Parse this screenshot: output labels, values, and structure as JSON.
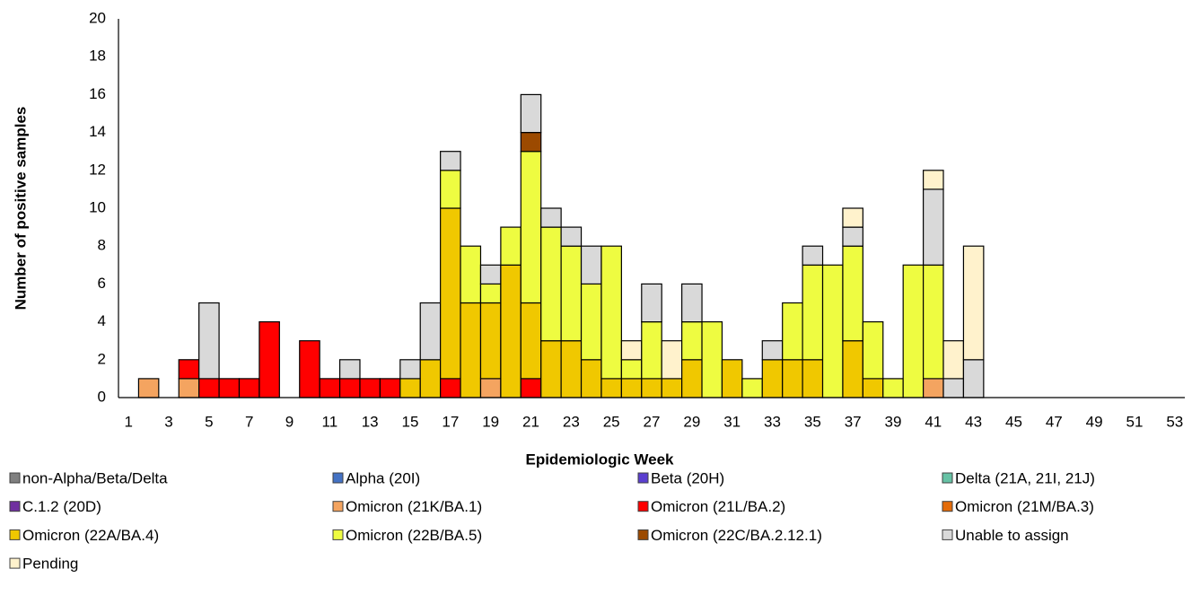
{
  "chart_data": {
    "type": "stacked_bar",
    "xlabel": "Epidemiologic Week",
    "ylabel": "Number of positive samples",
    "categories": [
      "1",
      null,
      "3",
      null,
      "5",
      null,
      "7",
      null,
      "9",
      null,
      "11",
      null,
      "13",
      null,
      "15",
      null,
      "17",
      null,
      "19",
      null,
      "21",
      null,
      "23",
      null,
      "25",
      null,
      "27",
      null,
      "29",
      null,
      "31",
      null,
      "33",
      null,
      "35",
      null,
      "37",
      null,
      "39",
      null,
      "41",
      null,
      "43",
      null,
      "45",
      null,
      "47",
      null,
      "49",
      null,
      "51",
      null,
      "53"
    ],
    "ylim": [
      0,
      20
    ],
    "yticks": [
      0,
      2,
      4,
      6,
      8,
      10,
      12,
      14,
      16,
      18,
      20
    ],
    "grid": false,
    "series": [
      {
        "name": "non-Alpha/Beta/Delta",
        "color": "#808080",
        "values": [
          0,
          0,
          0,
          0,
          0,
          0,
          0,
          0,
          0,
          0,
          0,
          0,
          0,
          0,
          0,
          0,
          0,
          0,
          0,
          0,
          0,
          0,
          0,
          0,
          0,
          0,
          0,
          0,
          0,
          0,
          0,
          0,
          0,
          0,
          0,
          0,
          0,
          0,
          0,
          0,
          0,
          0,
          0,
          0,
          0,
          0,
          0,
          0,
          0,
          0,
          0,
          0,
          0
        ]
      },
      {
        "name": "Alpha (20I)",
        "color": "#4472c4",
        "values": [
          0,
          0,
          0,
          0,
          0,
          0,
          0,
          0,
          0,
          0,
          0,
          0,
          0,
          0,
          0,
          0,
          0,
          0,
          0,
          0,
          0,
          0,
          0,
          0,
          0,
          0,
          0,
          0,
          0,
          0,
          0,
          0,
          0,
          0,
          0,
          0,
          0,
          0,
          0,
          0,
          0,
          0,
          0,
          0,
          0,
          0,
          0,
          0,
          0,
          0,
          0,
          0,
          0
        ]
      },
      {
        "name": "Beta (20H)",
        "color": "#5b3fd0",
        "values": [
          0,
          0,
          0,
          0,
          0,
          0,
          0,
          0,
          0,
          0,
          0,
          0,
          0,
          0,
          0,
          0,
          0,
          0,
          0,
          0,
          0,
          0,
          0,
          0,
          0,
          0,
          0,
          0,
          0,
          0,
          0,
          0,
          0,
          0,
          0,
          0,
          0,
          0,
          0,
          0,
          0,
          0,
          0,
          0,
          0,
          0,
          0,
          0,
          0,
          0,
          0,
          0,
          0
        ]
      },
      {
        "name": "Delta (21A, 21I, 21J)",
        "color": "#66c2a5",
        "values": [
          0,
          0,
          0,
          0,
          0,
          0,
          0,
          0,
          0,
          0,
          0,
          0,
          0,
          0,
          0,
          0,
          0,
          0,
          0,
          0,
          0,
          0,
          0,
          0,
          0,
          0,
          0,
          0,
          0,
          0,
          0,
          0,
          0,
          0,
          0,
          0,
          0,
          0,
          0,
          0,
          0,
          0,
          0,
          0,
          0,
          0,
          0,
          0,
          0,
          0,
          0,
          0,
          0
        ]
      },
      {
        "name": "C.1.2 (20D)",
        "color": "#7030a0",
        "values": [
          0,
          0,
          0,
          0,
          0,
          0,
          0,
          0,
          0,
          0,
          0,
          0,
          0,
          0,
          0,
          0,
          0,
          0,
          0,
          0,
          0,
          0,
          0,
          0,
          0,
          0,
          0,
          0,
          0,
          0,
          0,
          0,
          0,
          0,
          0,
          0,
          0,
          0,
          0,
          0,
          0,
          0,
          0,
          0,
          0,
          0,
          0,
          0,
          0,
          0,
          0,
          0,
          0
        ]
      },
      {
        "name": "Omicron (21K/BA.1)",
        "color": "#f4a460",
        "values": [
          0,
          1,
          0,
          1,
          0,
          0,
          0,
          0,
          0,
          0,
          0,
          0,
          0,
          0,
          0,
          0,
          0,
          0,
          1,
          0,
          0,
          0,
          0,
          0,
          0,
          0,
          0,
          0,
          0,
          0,
          0,
          0,
          0,
          0,
          0,
          0,
          0,
          0,
          0,
          0,
          1,
          0,
          0,
          0,
          0,
          0,
          0,
          0,
          0,
          0,
          0,
          0,
          0
        ]
      },
      {
        "name": "Omicron (21L/BA.2)",
        "color": "#ff0000",
        "values": [
          0,
          0,
          0,
          1,
          1,
          1,
          1,
          4,
          0,
          3,
          1,
          1,
          1,
          1,
          0,
          0,
          1,
          0,
          0,
          0,
          1,
          0,
          0,
          0,
          0,
          0,
          0,
          0,
          0,
          0,
          0,
          0,
          0,
          0,
          0,
          0,
          0,
          0,
          0,
          0,
          0,
          0,
          0,
          0,
          0,
          0,
          0,
          0,
          0,
          0,
          0,
          0,
          0
        ]
      },
      {
        "name": "Omicron (21M/BA.3)",
        "color": "#e46c0a",
        "values": [
          0,
          0,
          0,
          0,
          0,
          0,
          0,
          0,
          0,
          0,
          0,
          0,
          0,
          0,
          0,
          0,
          0,
          0,
          0,
          0,
          0,
          0,
          0,
          0,
          0,
          0,
          0,
          0,
          0,
          0,
          0,
          0,
          0,
          0,
          0,
          0,
          0,
          0,
          0,
          0,
          0,
          0,
          0,
          0,
          0,
          0,
          0,
          0,
          0,
          0,
          0,
          0,
          0
        ]
      },
      {
        "name": "Omicron (22A/BA.4)",
        "color": "#f0c800",
        "values": [
          0,
          0,
          0,
          0,
          0,
          0,
          0,
          0,
          0,
          0,
          0,
          0,
          0,
          0,
          1,
          2,
          9,
          5,
          4,
          7,
          4,
          3,
          3,
          2,
          1,
          1,
          1,
          1,
          2,
          0,
          2,
          0,
          2,
          2,
          2,
          0,
          3,
          1,
          0,
          0,
          0,
          0,
          0,
          0,
          0,
          0,
          0,
          0,
          0,
          0,
          0,
          0,
          0
        ]
      },
      {
        "name": "Omicron (22B/BA.5)",
        "color": "#eefc41",
        "values": [
          0,
          0,
          0,
          0,
          0,
          0,
          0,
          0,
          0,
          0,
          0,
          0,
          0,
          0,
          0,
          0,
          2,
          3,
          1,
          2,
          8,
          6,
          5,
          4,
          7,
          1,
          3,
          0,
          2,
          4,
          0,
          1,
          0,
          3,
          5,
          7,
          5,
          3,
          1,
          7,
          6,
          0,
          0,
          0,
          0,
          0,
          0,
          0,
          0,
          0,
          0,
          0,
          0
        ]
      },
      {
        "name": "Omicron (22C/BA.2.12.1)",
        "color": "#9c4a00",
        "values": [
          0,
          0,
          0,
          0,
          0,
          0,
          0,
          0,
          0,
          0,
          0,
          0,
          0,
          0,
          0,
          0,
          0,
          0,
          0,
          0,
          1,
          0,
          0,
          0,
          0,
          0,
          0,
          0,
          0,
          0,
          0,
          0,
          0,
          0,
          0,
          0,
          0,
          0,
          0,
          0,
          0,
          0,
          0,
          0,
          0,
          0,
          0,
          0,
          0,
          0,
          0,
          0,
          0
        ]
      },
      {
        "name": "Unable to assign",
        "color": "#d9d9d9",
        "values": [
          0,
          0,
          0,
          0,
          4,
          0,
          0,
          0,
          0,
          0,
          0,
          1,
          0,
          0,
          1,
          3,
          1,
          0,
          1,
          0,
          2,
          1,
          1,
          2,
          0,
          0,
          2,
          0,
          2,
          0,
          0,
          0,
          1,
          0,
          1,
          0,
          1,
          0,
          0,
          0,
          4,
          1,
          2,
          0,
          0,
          0,
          0,
          0,
          0,
          0,
          0,
          0,
          0
        ]
      },
      {
        "name": "Pending",
        "color": "#fff2cc",
        "values": [
          0,
          0,
          0,
          0,
          0,
          0,
          0,
          0,
          0,
          0,
          0,
          0,
          0,
          0,
          0,
          0,
          0,
          0,
          0,
          0,
          0,
          0,
          0,
          0,
          0,
          1,
          0,
          2,
          0,
          0,
          0,
          0,
          0,
          0,
          0,
          0,
          1,
          0,
          0,
          0,
          1,
          2,
          6,
          0,
          0,
          0,
          0,
          0,
          0,
          0,
          0,
          0,
          0
        ]
      }
    ]
  }
}
